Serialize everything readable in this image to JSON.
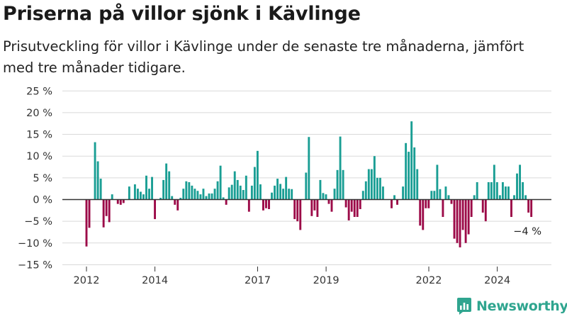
{
  "title": "Priserna på villor sjönk i Kävlinge",
  "subtitle": "Prisutveckling för villor i Kävlinge under de senaste tre månaderna, jämfört med tre månader tidigare.",
  "logo_text": "Newsworthy",
  "annotation": "−4 %",
  "colors": {
    "positive": "#1a9e94",
    "negative": "#9c0a48",
    "grid": "#d9d9d9",
    "zero": "#333333"
  },
  "chart_data": {
    "type": "bar",
    "title": "Priserna på villor sjönk i Kävlinge",
    "xlabel": "",
    "ylabel": "",
    "ylim": [
      -15,
      25
    ],
    "yticks": [
      25,
      20,
      15,
      10,
      5,
      0,
      -5,
      -10,
      -15
    ],
    "ytick_labels": [
      "25 %",
      "20 %",
      "15 %",
      "10 %",
      "5 %",
      "0 %",
      "−5 %",
      "−10 %",
      "−15 %"
    ],
    "xticks": [
      {
        "label": "2012",
        "x": 2012.0
      },
      {
        "label": "2014",
        "x": 2014.0
      },
      {
        "label": "2017",
        "x": 2017.0
      },
      {
        "label": "2019",
        "x": 2019.0
      },
      {
        "label": "2022",
        "x": 2022.0
      },
      {
        "label": "2024",
        "x": 2024.0
      }
    ],
    "x_start": 2012.0,
    "step_years": 0.0833,
    "values": [
      -10.8,
      -6.5,
      0.0,
      13.2,
      8.8,
      4.8,
      -6.4,
      -3.8,
      -5.2,
      1.2,
      0.0,
      -1.0,
      -1.2,
      -0.8,
      0.0,
      3.0,
      0.0,
      3.5,
      2.5,
      1.8,
      1.2,
      5.5,
      2.5,
      5.2,
      -4.5,
      0.0,
      0.4,
      4.5,
      8.3,
      6.5,
      0.8,
      -1.2,
      -2.5,
      0.4,
      2.5,
      4.2,
      4.0,
      3.2,
      2.5,
      2.0,
      1.2,
      2.5,
      0.8,
      1.4,
      1.4,
      2.5,
      4.2,
      7.8,
      0.5,
      -1.2,
      2.8,
      3.4,
      6.5,
      4.5,
      3.2,
      2.2,
      5.5,
      -2.8,
      3.2,
      7.5,
      11.2,
      3.5,
      -2.5,
      -2.0,
      -2.2,
      1.6,
      3.2,
      4.8,
      3.6,
      2.5,
      5.2,
      2.5,
      2.4,
      -4.5,
      -5.0,
      -7.0,
      0.0,
      6.2,
      14.4,
      -3.8,
      -2.5,
      -4.0,
      4.5,
      1.5,
      1.2,
      -1.0,
      -2.8,
      2.5,
      6.8,
      14.5,
      6.8,
      -1.8,
      -4.8,
      -2.8,
      -4.0,
      -4.0,
      -2.2,
      2.0,
      4.2,
      7.0,
      7.0,
      10.0,
      5.0,
      5.0,
      3.0,
      0.0,
      0.0,
      -2.0,
      1.0,
      -1.2,
      0.0,
      3.0,
      13.0,
      11.0,
      18.0,
      12.0,
      7.0,
      -6.0,
      -7.0,
      -2.0,
      -2.0,
      2.0,
      2.0,
      8.0,
      2.4,
      -4.0,
      3.0,
      1.0,
      -1.0,
      -9.0,
      -10.0,
      -11.0,
      -7.0,
      -10.0,
      -8.0,
      -4.0,
      1.0,
      4.0,
      0.0,
      -3.0,
      -5.0,
      4.0,
      4.0,
      8.0,
      4.0,
      1.0,
      4.0,
      3.0,
      3.0,
      -4.0,
      1.0,
      6.0,
      8.0,
      4.0,
      1.0,
      -3.0,
      -4.0
    ]
  }
}
